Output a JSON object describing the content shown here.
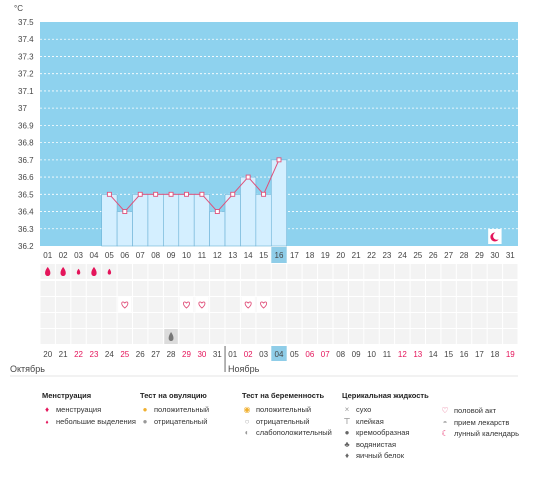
{
  "chart_data": {
    "type": "line",
    "ylabel": "°C",
    "ylim": [
      36.2,
      37.5
    ],
    "yticks": [
      "37.5",
      "37.4",
      "37.3",
      "37.2",
      "37.1",
      "37",
      "36.9",
      "36.8",
      "36.7",
      "36.6",
      "36.5",
      "36.4",
      "36.3",
      "36.2"
    ],
    "cycle_days": [
      "01",
      "02",
      "03",
      "04",
      "05",
      "06",
      "07",
      "08",
      "09",
      "10",
      "11",
      "12",
      "13",
      "14",
      "15",
      "16",
      "17",
      "18",
      "19",
      "20",
      "21",
      "22",
      "23",
      "24",
      "25",
      "26",
      "27",
      "28",
      "29",
      "30",
      "31"
    ],
    "dates": [
      "20",
      "21",
      "22",
      "23",
      "24",
      "25",
      "26",
      "27",
      "28",
      "29",
      "30",
      "31",
      "01",
      "02",
      "03",
      "04",
      "05",
      "06",
      "07",
      "08",
      "09",
      "10",
      "11",
      "12",
      "13",
      "14",
      "15",
      "16",
      "17",
      "18",
      "19"
    ],
    "red_date_indices": [
      2,
      3,
      5,
      9,
      10,
      13,
      17,
      18,
      23,
      24,
      30
    ],
    "months": [
      {
        "label": "Октябрь",
        "start_index": 0
      },
      {
        "label": "Ноябрь",
        "start_index": 12
      }
    ],
    "current_index": 15,
    "series": [
      {
        "values": [
          null,
          null,
          null,
          null,
          36.5,
          36.4,
          36.5,
          36.5,
          36.5,
          36.5,
          36.5,
          36.4,
          36.5,
          36.6,
          36.5,
          36.7,
          null,
          null,
          null,
          null,
          null,
          null,
          null,
          null,
          null,
          null,
          null,
          null,
          null,
          null,
          null
        ]
      }
    ],
    "menstruation_indices": [
      0,
      1,
      2,
      3,
      4
    ],
    "menstruation_kinds": [
      "full",
      "full",
      "light",
      "full",
      "light"
    ],
    "intercourse_indices": [
      5,
      9,
      10,
      13,
      14
    ],
    "wet_indices": [
      8
    ],
    "lunar_indices": [
      29
    ],
    "grid": true
  },
  "legend": {
    "menstruation": {
      "title": "Менструация",
      "items": [
        "менструация",
        "небольшие выделения"
      ]
    },
    "ovulation": {
      "title": "Тест на овуляцию",
      "items": [
        "положительный",
        "отрицательный"
      ]
    },
    "pregnancy": {
      "title": "Тест на беременность",
      "items": [
        "положительный",
        "отрицательный",
        "слабоположительный"
      ]
    },
    "cervical": {
      "title": "Церикальная жидкость",
      "items": [
        "сухо",
        "клейкая",
        "кремообразная",
        "водянистая",
        "яичный белок"
      ]
    },
    "other": {
      "items": [
        "половой акт",
        "прием лекарств",
        "лунный календарь"
      ]
    }
  },
  "colors": {
    "plot_bg": "#8ed2ee",
    "bar_fill": "#d4efff",
    "bar_edge": "#6cb2d6",
    "line": "#e0507a",
    "red": "#e4145a",
    "highlight": "#8fcde8"
  }
}
